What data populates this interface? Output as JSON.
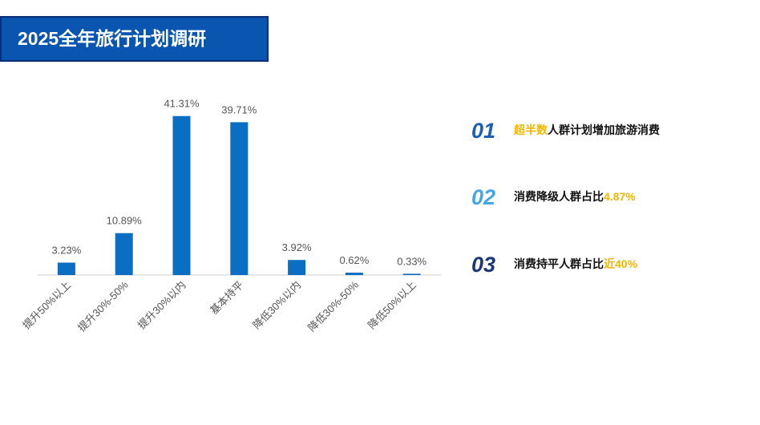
{
  "header": {
    "title": "2025全年旅行计划调研"
  },
  "chart_data": {
    "type": "bar",
    "categories": [
      "提升50%以上",
      "提升30%-50%",
      "提升30%以内",
      "基本持平",
      "降低30%以内",
      "降低30%-50%",
      "降低50%以上"
    ],
    "values": [
      3.23,
      10.89,
      41.31,
      39.71,
      3.92,
      0.62,
      0.33
    ],
    "value_labels": [
      "3.23%",
      "10.89%",
      "41.31%",
      "39.71%",
      "3.92%",
      "0.62%",
      "0.33%"
    ],
    "color": "#0a6fc2"
  },
  "points": [
    {
      "number": "01",
      "color": "#1b5fb8",
      "segments": [
        {
          "text": "超半数",
          "highlight": true
        },
        {
          "text": "人群计划增加旅游消费"
        }
      ]
    },
    {
      "number": "02",
      "color": "#45a6e6",
      "segments": [
        {
          "text": "消费降级人群占比"
        },
        {
          "text": "4.87%",
          "highlight": true
        }
      ]
    },
    {
      "number": "03",
      "color": "#1c3778",
      "segments": [
        {
          "text": "消费持平人群占比"
        },
        {
          "text": "近40%",
          "highlight": true
        }
      ]
    }
  ]
}
